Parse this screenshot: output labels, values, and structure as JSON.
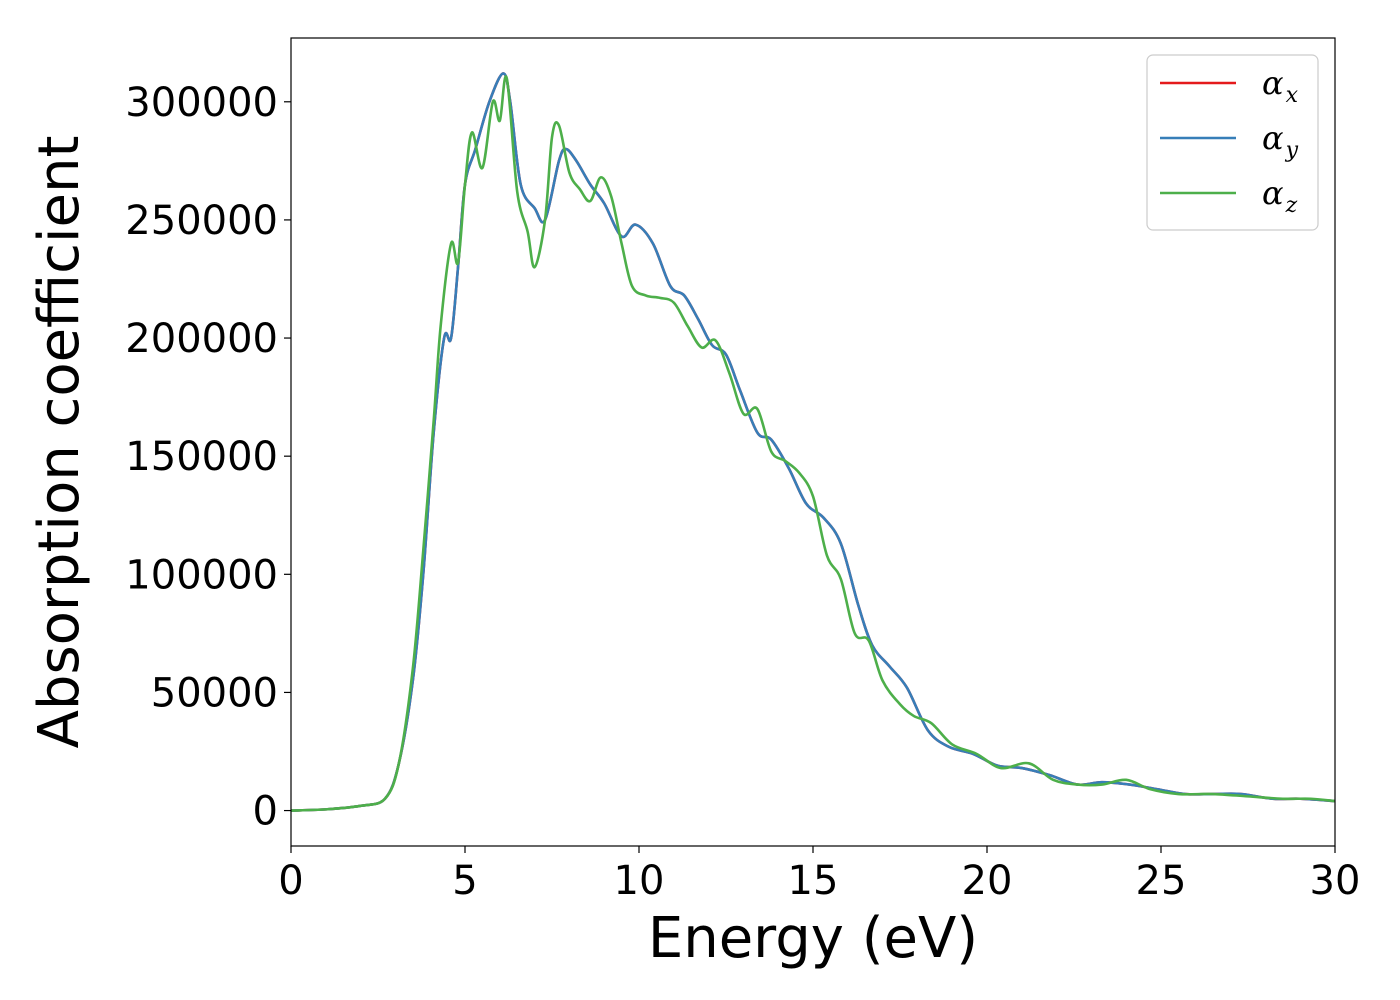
{
  "chart_data": {
    "type": "line",
    "title": "",
    "xlabel": "Energy (eV)",
    "ylabel": "Absorption coefficient",
    "xlim": [
      0,
      30
    ],
    "ylim": [
      -15000,
      327000
    ],
    "xticks": [
      0,
      5,
      10,
      15,
      20,
      25,
      30
    ],
    "yticks": [
      0,
      50000,
      100000,
      150000,
      200000,
      250000,
      300000
    ],
    "grid": false,
    "legend_position": "top-right",
    "series": [
      {
        "name": "α_x",
        "label_main": "α",
        "label_sub": "x",
        "color": "#e41a1c",
        "x": [
          0,
          1,
          2,
          2.7,
          3.1,
          3.5,
          3.8,
          4.1,
          4.4,
          4.6,
          4.8,
          5.0,
          5.3,
          5.7,
          6.1,
          6.3,
          6.6,
          7.0,
          7.3,
          7.7,
          7.9,
          8.2,
          8.6,
          9.0,
          9.5,
          9.9,
          10.4,
          10.9,
          11.3,
          11.7,
          12.1,
          12.5,
          12.9,
          13.4,
          13.8,
          14.3,
          14.8,
          15.3,
          15.8,
          16.3,
          16.7,
          17.2,
          17.7,
          18.3,
          18.9,
          19.6,
          20.3,
          21.0,
          21.8,
          22.6,
          23.3,
          24.1,
          24.9,
          25.7,
          26.5,
          27.3,
          28.2,
          29.0,
          30.0
        ],
        "y": [
          0,
          500,
          2000,
          5000,
          20000,
          55000,
          100000,
          160000,
          200000,
          200000,
          230000,
          265000,
          280000,
          300000,
          312000,
          300000,
          265000,
          255000,
          250000,
          275000,
          280000,
          275000,
          265000,
          257000,
          243000,
          248000,
          240000,
          222000,
          218000,
          208000,
          197000,
          193000,
          178000,
          160000,
          157000,
          145000,
          130000,
          124000,
          113000,
          87000,
          70000,
          61000,
          52000,
          34000,
          27000,
          24000,
          19000,
          18000,
          15000,
          11000,
          12000,
          11000,
          9000,
          7000,
          7000,
          7000,
          5000,
          5000,
          4000
        ]
      },
      {
        "name": "α_y",
        "label_main": "α",
        "label_sub": "y",
        "color": "#377eb8",
        "x": [
          0,
          1,
          2,
          2.7,
          3.1,
          3.5,
          3.8,
          4.1,
          4.4,
          4.6,
          4.8,
          5.0,
          5.3,
          5.7,
          6.1,
          6.3,
          6.6,
          7.0,
          7.3,
          7.7,
          7.9,
          8.2,
          8.6,
          9.0,
          9.5,
          9.9,
          10.4,
          10.9,
          11.3,
          11.7,
          12.1,
          12.5,
          12.9,
          13.4,
          13.8,
          14.3,
          14.8,
          15.3,
          15.8,
          16.3,
          16.7,
          17.2,
          17.7,
          18.3,
          18.9,
          19.6,
          20.3,
          21.0,
          21.8,
          22.6,
          23.3,
          24.1,
          24.9,
          25.7,
          26.5,
          27.3,
          28.2,
          29.0,
          30.0
        ],
        "y": [
          0,
          500,
          2000,
          5000,
          20000,
          55000,
          100000,
          160000,
          200000,
          200000,
          230000,
          265000,
          280000,
          300000,
          312000,
          300000,
          265000,
          255000,
          250000,
          275000,
          280000,
          275000,
          265000,
          257000,
          243000,
          248000,
          240000,
          222000,
          218000,
          208000,
          197000,
          193000,
          178000,
          160000,
          157000,
          145000,
          130000,
          124000,
          113000,
          87000,
          70000,
          61000,
          52000,
          34000,
          27000,
          24000,
          19000,
          18000,
          15000,
          11000,
          12000,
          11000,
          9000,
          7000,
          7000,
          7000,
          5000,
          5000,
          4000
        ]
      },
      {
        "name": "α_z",
        "label_main": "α",
        "label_sub": "z",
        "color": "#4daf4a",
        "x": [
          0,
          1,
          2,
          2.7,
          3.1,
          3.5,
          3.8,
          4.1,
          4.3,
          4.6,
          4.8,
          5.0,
          5.2,
          5.5,
          5.8,
          6.0,
          6.2,
          6.5,
          6.8,
          7.0,
          7.3,
          7.5,
          7.7,
          8.0,
          8.3,
          8.6,
          8.9,
          9.2,
          9.5,
          9.8,
          10.2,
          10.6,
          11.0,
          11.4,
          11.8,
          12.2,
          12.6,
          13.0,
          13.4,
          13.8,
          14.2,
          14.6,
          15.0,
          15.4,
          15.8,
          16.2,
          16.6,
          17.0,
          17.5,
          17.9,
          18.4,
          19.0,
          19.7,
          20.4,
          21.2,
          21.9,
          22.6,
          23.3,
          24.0,
          24.7,
          25.5,
          26.5,
          27.5,
          28.5,
          29.3,
          30.0
        ],
        "y": [
          0,
          500,
          2000,
          5000,
          20000,
          60000,
          110000,
          165000,
          205000,
          240000,
          232000,
          265000,
          287000,
          272000,
          300000,
          292000,
          310000,
          262000,
          245000,
          230000,
          250000,
          285000,
          290000,
          270000,
          263000,
          258000,
          268000,
          260000,
          240000,
          222000,
          218000,
          217000,
          215000,
          205000,
          196000,
          199000,
          185000,
          168000,
          170000,
          152000,
          148000,
          143000,
          133000,
          108000,
          98000,
          75000,
          72000,
          55000,
          45000,
          40000,
          37000,
          28000,
          24000,
          18000,
          20000,
          13000,
          11000,
          11000,
          13000,
          9000,
          7000,
          7000,
          6000,
          5000,
          5000,
          4000
        ]
      }
    ]
  }
}
